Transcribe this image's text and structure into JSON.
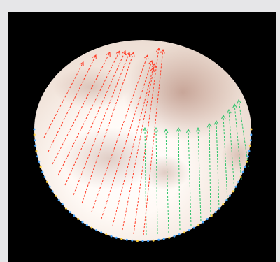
{
  "scene": {
    "background_color": "#000000",
    "frame_color": "#e6e6e8",
    "sphere_colors": {
      "highlight": "#ffffff",
      "mid": "#f2e7de",
      "shadow": "#c6a394",
      "bright_band": "#fff7f0"
    },
    "ray_colors": {
      "red": "#ff3a24",
      "green": "#2ec46a"
    },
    "boundary_dot_colors": [
      "#4aa8ff",
      "#ffd040"
    ],
    "red_ray_count": 13,
    "green_ray_count": 12
  }
}
